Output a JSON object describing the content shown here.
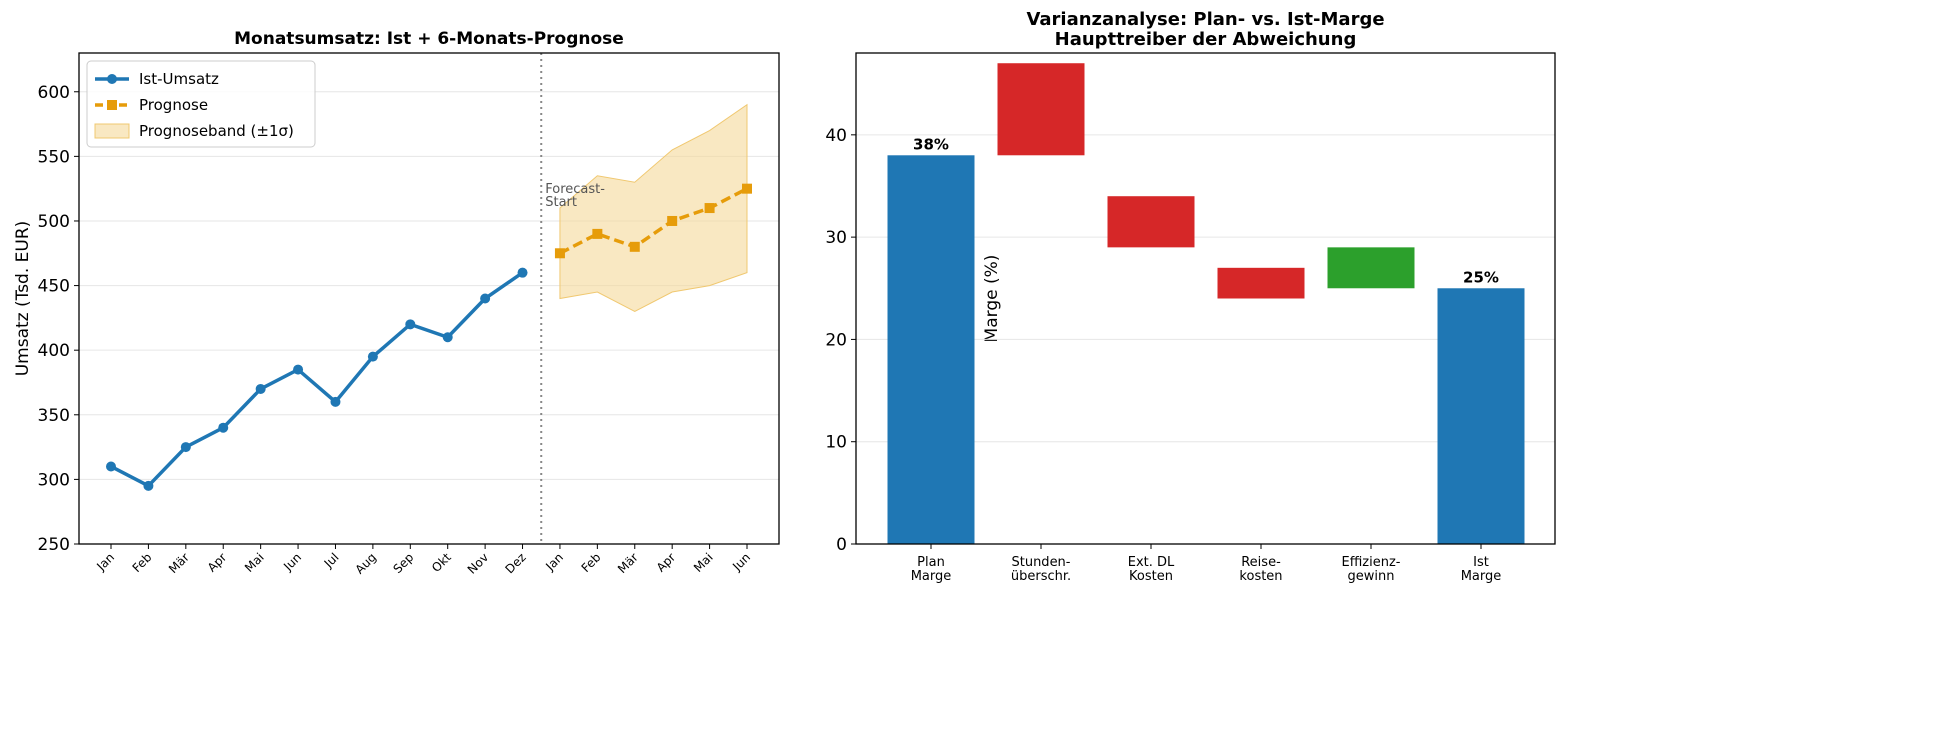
{
  "chart_data": [
    {
      "type": "line",
      "title": "Monatsumsatz: Ist + 6-Monats-Prognose",
      "ylabel": "Umsatz (Tsd. EUR)",
      "categories": [
        "Jan",
        "Feb",
        "Mär",
        "Apr",
        "Mai",
        "Jun",
        "Jul",
        "Aug",
        "Sep",
        "Okt",
        "Nov",
        "Dez",
        "Jan",
        "Feb",
        "Mär",
        "Apr",
        "Mai",
        "Jun"
      ],
      "series": [
        {
          "name": "Ist-Umsatz",
          "color": "#1f77b4",
          "marker": "circle",
          "dash": false,
          "values": [
            310,
            295,
            325,
            340,
            370,
            385,
            360,
            395,
            420,
            410,
            440,
            460,
            null,
            null,
            null,
            null,
            null,
            null
          ]
        },
        {
          "name": "Prognose",
          "color": "#e69c0a",
          "marker": "square",
          "dash": true,
          "values": [
            null,
            null,
            null,
            null,
            null,
            null,
            null,
            null,
            null,
            null,
            null,
            null,
            475,
            490,
            480,
            500,
            510,
            525
          ]
        }
      ],
      "band": {
        "name": "Prognoseband (±1σ)",
        "color": "#f5d999",
        "upper": [
          null,
          null,
          null,
          null,
          null,
          null,
          null,
          null,
          null,
          null,
          null,
          null,
          510,
          535,
          530,
          555,
          570,
          590
        ],
        "lower": [
          null,
          null,
          null,
          null,
          null,
          null,
          null,
          null,
          null,
          null,
          null,
          null,
          440,
          445,
          430,
          445,
          450,
          460
        ]
      },
      "annotation": "Forecast-\nStart",
      "ylim": [
        250,
        630
      ],
      "yticks": [
        250,
        300,
        350,
        400,
        450,
        500,
        550,
        600
      ],
      "grid": true,
      "legend": "upper left"
    },
    {
      "type": "waterfall",
      "title": "Varianzanalyse: Plan- vs. Ist-Marge\nHaupttreiber der Abweichung",
      "ylabel": "Marge (%)",
      "categories": [
        "Plan\nMarge",
        "Stunden-\nüberschr.",
        "Ext. DL\nKosten",
        "Reise-\nkosten",
        "Effizienz-\ngewinn",
        "Ist\nMarge"
      ],
      "bases": [
        0,
        38,
        29,
        24,
        25,
        0
      ],
      "values": [
        38,
        9,
        5,
        3,
        4,
        25
      ],
      "colors": [
        "#1f77b4",
        "#d62728",
        "#d62728",
        "#d62728",
        "#2ca02c",
        "#1f77b4"
      ],
      "value_labels": [
        "38%",
        null,
        null,
        null,
        null,
        "25%"
      ],
      "ylim": [
        0,
        48
      ],
      "yticks": [
        0,
        10,
        20,
        30,
        40
      ],
      "grid": true
    }
  ]
}
